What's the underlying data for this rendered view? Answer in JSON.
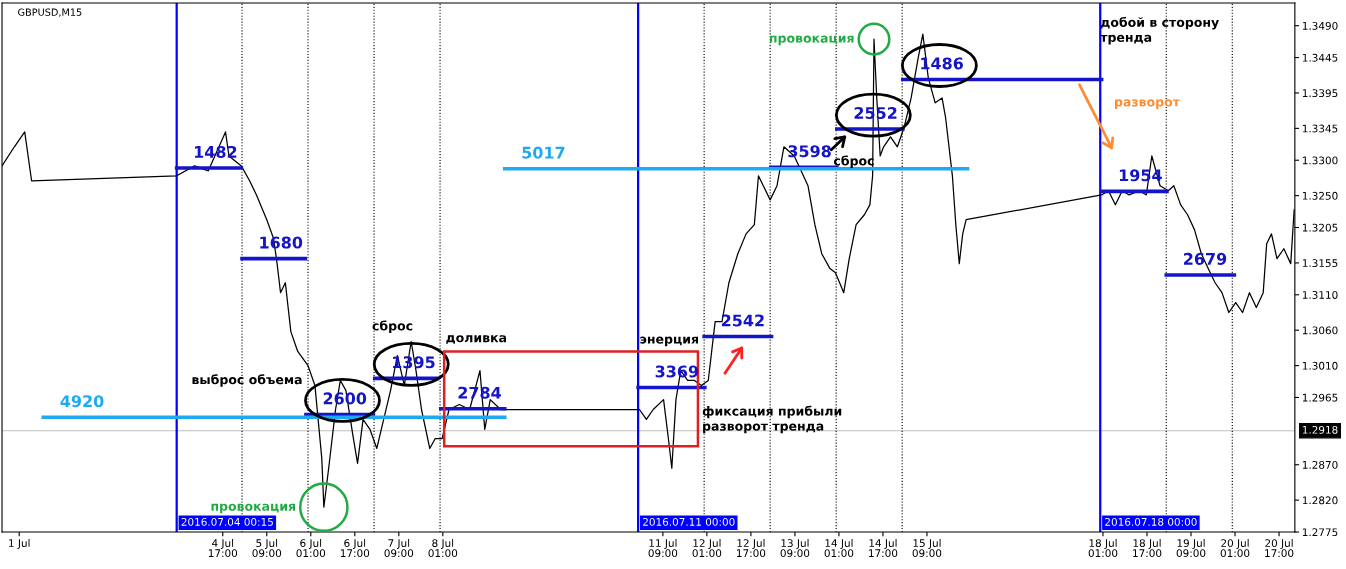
{
  "chart_data": {
    "type": "line",
    "xlim": [
      "2016-07-01T08:45",
      "2016-07-20T22:45"
    ],
    "ylim": [
      1.2775,
      1.3522
    ],
    "xticks": [
      {
        "value": "2016-07-01T15:00",
        "label": "1 Jul"
      },
      {
        "value": "2016-07-04T17:00",
        "label": "4 Jul 17:00"
      },
      {
        "value": "2016-07-05T09:00",
        "label": "5 Jul 09:00"
      },
      {
        "value": "2016-07-06T01:00",
        "label": "6 Jul 01:00"
      },
      {
        "value": "2016-07-06T17:00",
        "label": "6 Jul 17:00"
      },
      {
        "value": "2016-07-07T09:00",
        "label": "7 Jul 09:00"
      },
      {
        "value": "2016-07-08T01:00",
        "label": "8 Jul 01:00"
      },
      {
        "value": "2016-07-11T09:00",
        "label": "11 Jul 09:00"
      },
      {
        "value": "2016-07-12T01:00",
        "label": "12 Jul 01:00"
      },
      {
        "value": "2016-07-12T17:00",
        "label": "12 Jul 17:00"
      },
      {
        "value": "2016-07-13T09:00",
        "label": "13 Jul 09:00"
      },
      {
        "value": "2016-07-14T01:00",
        "label": "14 Jul 01:00"
      },
      {
        "value": "2016-07-14T17:00",
        "label": "14 Jul 17:00"
      },
      {
        "value": "2016-07-15T09:00",
        "label": "15 Jul 09:00"
      },
      {
        "value": "2016-07-18T01:00",
        "label": "18 Jul 01:00"
      },
      {
        "value": "2016-07-18T17:00",
        "label": "18 Jul 17:00"
      },
      {
        "value": "2016-07-19T09:00",
        "label": "19 Jul 09:00"
      },
      {
        "value": "2016-07-20T01:00",
        "label": "20 Jul 01:00"
      },
      {
        "value": "2016-07-20T17:00",
        "label": "20 Jul 17:00"
      }
    ],
    "yticks": [
      {
        "value": 1.349,
        "label": "1.3490"
      },
      {
        "value": 1.3445,
        "label": "1.3445"
      },
      {
        "value": 1.3395,
        "label": "1.3395"
      },
      {
        "value": 1.3345,
        "label": "1.3345"
      },
      {
        "value": 1.33,
        "label": "1.3300"
      },
      {
        "value": 1.325,
        "label": "1.3250"
      },
      {
        "value": 1.3205,
        "label": "1.3205"
      },
      {
        "value": 1.3155,
        "label": "1.3155"
      },
      {
        "value": 1.311,
        "label": "1.3110"
      },
      {
        "value": 1.306,
        "label": "1.3060"
      },
      {
        "value": 1.301,
        "label": "1.3010"
      },
      {
        "value": 1.2965,
        "label": "1.2965"
      },
      {
        "value": 1.287,
        "label": "1.2870"
      },
      {
        "value": 1.282,
        "label": "1.2820"
      },
      {
        "value": 1.2775,
        "label": "1.2775"
      }
    ],
    "series": [
      {
        "color": "#000000",
        "x": [
          "2016-07-01T08:45",
          "2016-07-01T13:15",
          "2016-07-01T17:00",
          "2016-07-01T19:30",
          "2016-07-04T00:15",
          "2016-07-04T06:45",
          "2016-07-04T11:45",
          "2016-07-04T18:00",
          "2016-07-04T19:15",
          "2016-07-04T23:45",
          "2016-07-05T02:45",
          "2016-07-05T05:15",
          "2016-07-05T09:00",
          "2016-07-05T11:30",
          "2016-07-05T12:45",
          "2016-07-05T14:00",
          "2016-07-05T15:45",
          "2016-07-05T17:45",
          "2016-07-05T20:15",
          "2016-07-06T00:00",
          "2016-07-06T02:30",
          "2016-07-06T05:00",
          "2016-07-06T05:45",
          "2016-07-06T07:30",
          "2016-07-06T10:00",
          "2016-07-06T11:45",
          "2016-07-06T13:45",
          "2016-07-06T16:15",
          "2016-07-06T18:00",
          "2016-07-06T20:00",
          "2016-07-06T22:30",
          "2016-07-07T01:00",
          "2016-07-07T03:30",
          "2016-07-07T06:00",
          "2016-07-07T08:30",
          "2016-07-07T11:00",
          "2016-07-07T13:30",
          "2016-07-07T15:15",
          "2016-07-07T17:15",
          "2016-07-07T20:15",
          "2016-07-07T22:15",
          "2016-07-08T00:45",
          "2016-07-08T03:15",
          "2016-07-08T07:00",
          "2016-07-08T10:45",
          "2016-07-08T14:30",
          "2016-07-08T16:15",
          "2016-07-08T18:15",
          "2016-07-08T22:00",
          "2016-07-11T00:30",
          "2016-07-11T03:00",
          "2016-07-11T05:30",
          "2016-07-11T09:15",
          "2016-07-11T11:00",
          "2016-07-11T12:15",
          "2016-07-11T13:45",
          "2016-07-11T15:30",
          "2016-07-11T18:00",
          "2016-07-11T20:30",
          "2016-07-11T23:00",
          "2016-07-12T01:30",
          "2016-07-12T04:00",
          "2016-07-12T06:30",
          "2016-07-12T09:00",
          "2016-07-12T12:15",
          "2016-07-12T15:15",
          "2016-07-12T18:15",
          "2016-07-12T19:45",
          "2016-07-12T21:30",
          "2016-07-13T00:00",
          "2016-07-13T02:30",
          "2016-07-13T05:00",
          "2016-07-13T08:45",
          "2016-07-13T11:15",
          "2016-07-13T13:45",
          "2016-07-13T16:15",
          "2016-07-13T18:45",
          "2016-07-13T21:45",
          "2016-07-13T23:45",
          "2016-07-14T02:45",
          "2016-07-14T04:45",
          "2016-07-14T07:15",
          "2016-07-14T10:15",
          "2016-07-14T12:15",
          "2016-07-14T13:15",
          "2016-07-14T13:45",
          "2016-07-14T14:45",
          "2016-07-14T16:00",
          "2016-07-14T17:15",
          "2016-07-14T19:45",
          "2016-07-14T22:15",
          "2016-07-15T00:45",
          "2016-07-15T03:15",
          "2016-07-15T05:45",
          "2016-07-15T07:30",
          "2016-07-15T09:30",
          "2016-07-15T12:00",
          "2016-07-15T14:30",
          "2016-07-15T15:45",
          "2016-07-15T18:15",
          "2016-07-15T19:30",
          "2016-07-15T20:45",
          "2016-07-15T22:00",
          "2016-07-15T23:15",
          "2016-07-18T00:30",
          "2016-07-18T03:00",
          "2016-07-18T05:30",
          "2016-07-18T08:00",
          "2016-07-18T10:30",
          "2016-07-18T14:15",
          "2016-07-18T16:45",
          "2016-07-18T18:45",
          "2016-07-18T21:45",
          "2016-07-19T00:45",
          "2016-07-19T02:45",
          "2016-07-19T05:15",
          "2016-07-19T07:45",
          "2016-07-19T10:15",
          "2016-07-19T12:45",
          "2016-07-19T15:15",
          "2016-07-19T17:45",
          "2016-07-19T20:15",
          "2016-07-19T22:45",
          "2016-07-20T01:15",
          "2016-07-20T03:45",
          "2016-07-20T06:15",
          "2016-07-20T08:45",
          "2016-07-20T11:15",
          "2016-07-20T12:30",
          "2016-07-20T14:15",
          "2016-07-20T16:15",
          "2016-07-20T18:45",
          "2016-07-20T21:15",
          "2016-07-20T22:30"
        ],
        "values": [
          1.3292,
          1.3319,
          1.334,
          1.3271,
          1.3278,
          1.3292,
          1.3285,
          1.334,
          1.3306,
          1.3292,
          1.3271,
          1.3251,
          1.3216,
          1.3189,
          1.3154,
          1.3113,
          1.3127,
          1.3058,
          1.303,
          1.301,
          1.2982,
          1.2879,
          1.281,
          1.2865,
          1.2948,
          1.2989,
          1.2975,
          1.2913,
          1.2872,
          1.2934,
          1.292,
          1.2893,
          1.2934,
          1.2975,
          1.3024,
          1.2982,
          1.3044,
          1.3003,
          1.2948,
          1.2893,
          1.2907,
          1.2907,
          1.2948,
          1.2955,
          1.2948,
          1.3003,
          1.292,
          1.2962,
          1.2948,
          1.2948,
          1.2934,
          1.2948,
          1.2962,
          1.2907,
          1.2865,
          1.2962,
          1.3003,
          1.2989,
          1.2989,
          1.2982,
          1.2989,
          1.3072,
          1.3072,
          1.3127,
          1.3168,
          1.3196,
          1.3209,
          1.3278,
          1.3264,
          1.3244,
          1.3264,
          1.3319,
          1.3306,
          1.3285,
          1.3264,
          1.3209,
          1.3168,
          1.3147,
          1.3141,
          1.3113,
          1.3161,
          1.3209,
          1.3223,
          1.3237,
          1.3278,
          1.3471,
          1.3388,
          1.3306,
          1.3319,
          1.3333,
          1.3319,
          1.3347,
          1.3388,
          1.3443,
          1.3478,
          1.3416,
          1.3381,
          1.3388,
          1.3361,
          1.3278,
          1.3209,
          1.3154,
          1.3196,
          1.3216,
          1.3251,
          1.3257,
          1.3237,
          1.3257,
          1.3251,
          1.3257,
          1.3251,
          1.3306,
          1.3264,
          1.3257,
          1.3264,
          1.3237,
          1.3223,
          1.3202,
          1.3168,
          1.3147,
          1.3127,
          1.3113,
          1.3085,
          1.3099,
          1.3085,
          1.3113,
          1.3092,
          1.3113,
          1.3182,
          1.3196,
          1.3161,
          1.3175,
          1.3154,
          1.323
        ]
      },
      {
        "name": "1482",
        "color": "#1414c8",
        "x": [
          "2016-07-04T00:15",
          "2016-07-04T23:45"
        ],
        "values": [
          1.3289,
          1.3289
        ]
      },
      {
        "name": "1680",
        "color": "#1414c8",
        "x": [
          "2016-07-05T00:00",
          "2016-07-05T23:00"
        ],
        "values": [
          1.3161,
          1.3161
        ]
      },
      {
        "name": "2600",
        "color": "#1414c8",
        "x": [
          "2016-07-05T23:15",
          "2016-07-06T23:45"
        ],
        "values": [
          1.2941,
          1.2941
        ]
      },
      {
        "name": "1395",
        "color": "#1414c8",
        "x": [
          "2016-07-07T00:15",
          "2016-07-07T23:00"
        ],
        "values": [
          1.2992,
          1.2992
        ]
      },
      {
        "name": "2784",
        "color": "#1414c8",
        "x": [
          "2016-07-08T00:15",
          "2016-07-08T23:30"
        ],
        "values": [
          1.2949,
          1.2949
        ]
      },
      {
        "name": "3369",
        "color": "#1414c8",
        "x": [
          "2016-07-11T00:00",
          "2016-07-12T00:15"
        ],
        "values": [
          1.2979,
          1.2979
        ]
      },
      {
        "name": "2542",
        "color": "#1414c8",
        "x": [
          "2016-07-12T00:00",
          "2016-07-13T00:30"
        ],
        "values": [
          1.3051,
          1.3051
        ]
      },
      {
        "name": "3598",
        "color": "#1414c8",
        "x": [
          "2016-07-13T00:15",
          "2016-07-14T00:15"
        ],
        "values": [
          1.329,
          1.329
        ]
      },
      {
        "name": "2552",
        "color": "#1414c8",
        "x": [
          "2016-07-14T00:15",
          "2016-07-15T00:15"
        ],
        "values": [
          1.3344,
          1.3344
        ]
      },
      {
        "name": "1486",
        "color": "#1414c8",
        "x": [
          "2016-07-15T00:15",
          "2016-07-18T00:30"
        ],
        "values": [
          1.3414,
          1.3414
        ]
      },
      {
        "name": "1954",
        "color": "#1414c8",
        "x": [
          "2016-07-18T00:30",
          "2016-07-19T00:15"
        ],
        "values": [
          1.3256,
          1.3256
        ]
      },
      {
        "name": "2679",
        "color": "#1414c8",
        "x": [
          "2016-07-19T00:00",
          "2016-07-20T00:45"
        ],
        "values": [
          1.3138,
          1.3138
        ]
      },
      {
        "name": "4920",
        "color": "#1eaaf0",
        "x": [
          "2016-07-01T23:45",
          "2016-07-08T23:30"
        ],
        "values": [
          1.2937,
          1.2937
        ]
      },
      {
        "name": "5017",
        "color": "#1eaaf0",
        "x": [
          "2016-07-08T23:30",
          "2016-07-15T23:45"
        ],
        "values": [
          1.3288,
          1.3288
        ]
      }
    ],
    "ref_lines": [
      {
        "axis": "x",
        "value": "2016-07-04T00:15",
        "label": "2016.07.04 00:15",
        "color": "#0000ff",
        "line_style": "solid"
      },
      {
        "axis": "x",
        "value": "2016-07-11T00:00",
        "label": "2016.07.11 00:00",
        "color": "#0000ff",
        "line_style": "solid"
      },
      {
        "axis": "x",
        "value": "2016-07-18T00:00",
        "label": "2016.07.18 00:00",
        "color": "#0000ff",
        "line_style": "solid"
      },
      {
        "axis": "x",
        "value": "2016-07-05T00:00",
        "color": "#000000",
        "line_style": "dotted"
      },
      {
        "axis": "x",
        "value": "2016-07-06T00:00",
        "color": "#000000",
        "line_style": "dotted"
      },
      {
        "axis": "x",
        "value": "2016-07-07T00:00",
        "color": "#000000",
        "line_style": "dotted"
      },
      {
        "axis": "x",
        "value": "2016-07-08T00:00",
        "color": "#000000",
        "line_style": "dotted"
      },
      {
        "axis": "x",
        "value": "2016-07-12T00:00",
        "color": "#000000",
        "line_style": "dotted"
      },
      {
        "axis": "x",
        "value": "2016-07-13T00:00",
        "color": "#000000",
        "line_style": "dotted"
      },
      {
        "axis": "x",
        "value": "2016-07-14T00:00",
        "color": "#000000",
        "line_style": "dotted"
      },
      {
        "axis": "x",
        "value": "2016-07-15T00:00",
        "color": "#000000",
        "line_style": "dotted"
      },
      {
        "axis": "x",
        "value": "2016-07-19T00:00",
        "color": "#000000",
        "line_style": "dotted"
      },
      {
        "axis": "x",
        "value": "2016-07-20T00:00",
        "color": "#000000",
        "line_style": "dotted"
      },
      {
        "axis": "y",
        "value": 1.2918,
        "label": "1.2918",
        "color": "#c0c0c0",
        "line_style": "solid"
      }
    ],
    "annotations": [
      "GBPUSD,M15",
      "выброс объема",
      "сброс",
      "доливка",
      "энерция",
      "фиксация прибыли\nразворот тренда",
      {
        "text": "провокация",
        "x": "2016-07-06T05:45",
        "y": 1.281
      },
      {
        "text": "провокация",
        "x": "2016-07-14T13:45",
        "y": 1.3471
      },
      "сброс",
      "добой в сторону\nтренда",
      "разворот"
    ]
  }
}
